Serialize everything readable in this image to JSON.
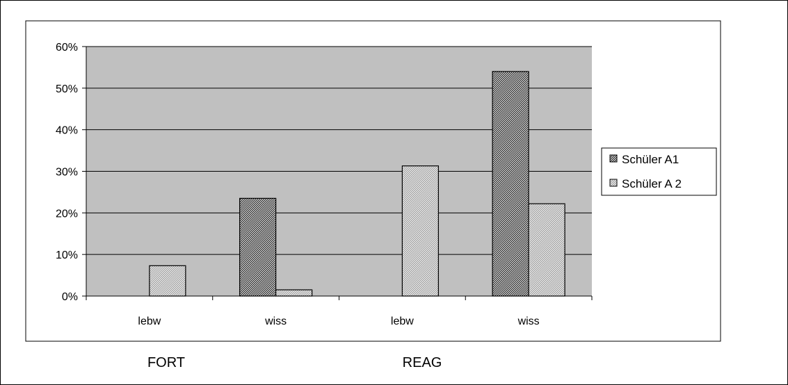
{
  "chart_data": {
    "type": "bar",
    "categories": [
      "lebw",
      "wiss",
      "lebw",
      "wiss"
    ],
    "groups": [
      {
        "label": "FORT",
        "span": [
          0,
          1
        ]
      },
      {
        "label": "REAG",
        "span": [
          2,
          3
        ]
      }
    ],
    "series": [
      {
        "name": "Schüler A1",
        "values": [
          0,
          23.5,
          0,
          54
        ]
      },
      {
        "name": "Schüler A 2",
        "values": [
          7.3,
          1.5,
          31.3,
          22.2
        ]
      }
    ],
    "ylim": [
      0,
      60
    ],
    "yticks": [
      "0%",
      "10%",
      "20%",
      "30%",
      "40%",
      "50%",
      "60%"
    ],
    "ytick_values": [
      0,
      10,
      20,
      30,
      40,
      50,
      60
    ],
    "grid": true,
    "legend_position": "right",
    "colors": {
      "plot_background": "#c0c0c0",
      "series_1_hatch": "#000000",
      "series_2_hatch": "#8a8a8a",
      "bar_fill": "#ffffff"
    }
  }
}
